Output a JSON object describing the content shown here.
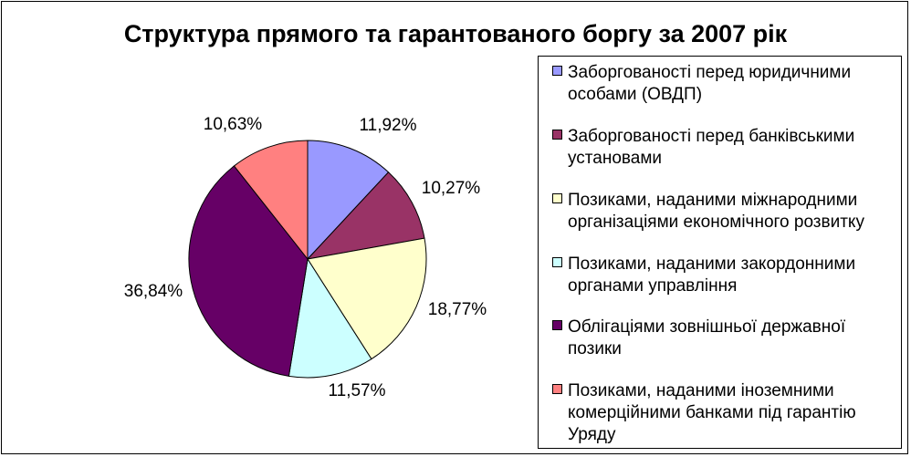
{
  "chart_data": {
    "type": "pie",
    "title": "Структура прямого та гарантованого боргу за 2007 рік",
    "categories": [
      "Заборгованості перед юридичними особами (ОВДП)",
      "Заборгованості перед банківськими установами",
      "Позиками, наданими міжнародними організаціями економічного розвитку",
      "Позиками, наданими закордонними органами управління",
      "Облігаціями зовнішньої державної позики",
      "Позиками, наданими іноземними комерційними банками під гарантію Уряду"
    ],
    "values": [
      11.92,
      10.27,
      18.77,
      11.57,
      36.84,
      10.63
    ],
    "data_labels": [
      "11,92%",
      "10,27%",
      "18,77%",
      "11,57%",
      "36,84%",
      "10,63%"
    ],
    "colors": [
      "#9999ff",
      "#993366",
      "#ffffcc",
      "#ccffff",
      "#660066",
      "#ff8080"
    ],
    "legend_position": "right",
    "start_angle": "top, clockwise"
  }
}
